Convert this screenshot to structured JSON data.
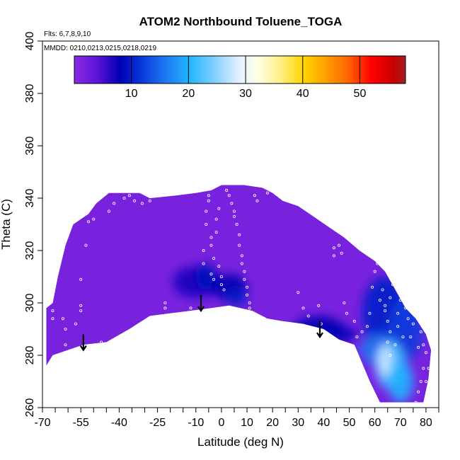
{
  "chart_data": {
    "type": "heatmap",
    "title": "ATOM2 Northbound Toluene_TOGA",
    "notes": {
      "flights": "Flts: 6,7,8,9,10",
      "dates": "MMDD: 0210,0213,0215,0218,0219"
    },
    "xlabel": "Latitude (deg N)",
    "ylabel": "Theta (C)",
    "xlim": [
      -70,
      85
    ],
    "ylim": [
      260,
      400
    ],
    "x_tick_labels": [
      "-70",
      "-55",
      "-40",
      "-25",
      "-10",
      "0",
      "10",
      "20",
      "30",
      "40",
      "50",
      "60",
      "70",
      "80"
    ],
    "x_tick_values": [
      -70,
      -55,
      -40,
      -25,
      -10,
      0,
      10,
      20,
      30,
      40,
      50,
      60,
      70,
      80
    ],
    "x_minor_ticks": [
      -65,
      -60,
      -50,
      -45,
      -35,
      -30,
      -20,
      -15,
      -5,
      5,
      15,
      25,
      35,
      45,
      55,
      65,
      75,
      85
    ],
    "y_tick_labels": [
      "260",
      "280",
      "300",
      "320",
      "340",
      "360",
      "380",
      "400"
    ],
    "y_tick_values": [
      260,
      280,
      300,
      320,
      340,
      360,
      380,
      400
    ],
    "colorbar": {
      "range": [
        0,
        58
      ],
      "tick_labels": [
        "10",
        "20",
        "30",
        "40",
        "50"
      ],
      "tick_values": [
        10,
        20,
        30,
        40,
        50
      ],
      "stops": [
        {
          "v": 0,
          "color": "#8a2be2"
        },
        {
          "v": 4,
          "color": "#5a14d8"
        },
        {
          "v": 8,
          "color": "#0000b4"
        },
        {
          "v": 12,
          "color": "#0a3cdc"
        },
        {
          "v": 16,
          "color": "#1e78f0"
        },
        {
          "v": 20,
          "color": "#1eb4ff"
        },
        {
          "v": 25,
          "color": "#8cd2ff"
        },
        {
          "v": 29,
          "color": "#e6f2ff"
        },
        {
          "v": 32,
          "color": "#ffffe6"
        },
        {
          "v": 36,
          "color": "#fff08c"
        },
        {
          "v": 40,
          "color": "#ffd700"
        },
        {
          "v": 44,
          "color": "#ffa000"
        },
        {
          "v": 48,
          "color": "#ff6400"
        },
        {
          "v": 52,
          "color": "#ff0000"
        },
        {
          "v": 56,
          "color": "#c80000"
        },
        {
          "v": 58,
          "color": "#a02020"
        }
      ]
    },
    "background_value": 1.5,
    "domain_boundary": [
      [
        -68.5,
        276
      ],
      [
        -68.5,
        298
      ],
      [
        -66,
        300
      ],
      [
        -64,
        310
      ],
      [
        -61,
        322
      ],
      [
        -58,
        330
      ],
      [
        -55,
        332
      ],
      [
        -52,
        334
      ],
      [
        -49,
        338
      ],
      [
        -44,
        342
      ],
      [
        -32,
        342
      ],
      [
        -28,
        340
      ],
      [
        -18,
        341
      ],
      [
        -10,
        342
      ],
      [
        -4,
        343
      ],
      [
        0,
        345
      ],
      [
        9,
        345
      ],
      [
        16,
        344
      ],
      [
        20,
        342
      ],
      [
        24,
        339
      ],
      [
        30,
        337
      ],
      [
        36,
        333
      ],
      [
        42,
        329
      ],
      [
        48,
        325
      ],
      [
        54,
        320
      ],
      [
        60,
        316
      ],
      [
        64,
        312
      ],
      [
        68,
        305
      ],
      [
        72,
        298
      ],
      [
        76,
        294
      ],
      [
        80,
        288
      ],
      [
        82,
        282
      ],
      [
        81,
        271
      ],
      [
        79,
        262
      ],
      [
        70,
        262
      ],
      [
        62,
        262
      ],
      [
        58,
        270
      ],
      [
        52,
        284
      ],
      [
        46,
        286
      ],
      [
        40,
        290
      ],
      [
        32,
        292
      ],
      [
        24,
        293
      ],
      [
        18,
        294
      ],
      [
        12,
        297
      ],
      [
        3,
        299
      ],
      [
        -4,
        298
      ],
      [
        -12,
        297
      ],
      [
        -20,
        296
      ],
      [
        -28,
        295
      ],
      [
        -36,
        290
      ],
      [
        -45,
        285
      ],
      [
        -54,
        284
      ],
      [
        -60,
        282
      ],
      [
        -66,
        280
      ]
    ],
    "concentration_patches": [
      {
        "lat": -10,
        "theta": 308,
        "rlat": 9,
        "rtheta": 6,
        "value": 7
      },
      {
        "lat": -6,
        "theta": 310,
        "rlat": 4,
        "rtheta": 5,
        "value": 9
      },
      {
        "lat": 3,
        "theta": 306,
        "rlat": 7,
        "rtheta": 5,
        "value": 8
      },
      {
        "lat": 6,
        "theta": 302,
        "rlat": 4,
        "rtheta": 3,
        "value": 10
      },
      {
        "lat": 38,
        "theta": 290,
        "rlat": 10,
        "rtheta": 5,
        "value": 8
      },
      {
        "lat": 45,
        "theta": 288,
        "rlat": 8,
        "rtheta": 3,
        "value": 8
      },
      {
        "lat": 64,
        "theta": 296,
        "rlat": 9,
        "rtheta": 14,
        "value": 10
      },
      {
        "lat": 72,
        "theta": 290,
        "rlat": 7,
        "rtheta": 12,
        "value": 12
      },
      {
        "lat": 62,
        "theta": 282,
        "rlat": 8,
        "rtheta": 6,
        "value": 16
      },
      {
        "lat": 66,
        "theta": 276,
        "rlat": 6,
        "rtheta": 9,
        "value": 22
      },
      {
        "lat": 64,
        "theta": 278,
        "rlat": 2.5,
        "rtheta": 6,
        "value": 28
      },
      {
        "lat": 70,
        "theta": 270,
        "rlat": 5,
        "rtheta": 8,
        "value": 20
      }
    ],
    "arrows": [
      {
        "lat": -54,
        "theta_start": 288,
        "theta_end": 282
      },
      {
        "lat": -8,
        "theta_start": 303,
        "theta_end": 297
      },
      {
        "lat": 38.5,
        "theta_start": 293,
        "theta_end": 287
      }
    ],
    "sample_points": [
      [
        -66,
        297
      ],
      [
        -66,
        294
      ],
      [
        -62,
        294
      ],
      [
        -61,
        290
      ],
      [
        -61,
        284
      ],
      [
        -57,
        292
      ],
      [
        -55,
        299
      ],
      [
        -55,
        297
      ],
      [
        -55,
        309
      ],
      [
        -53,
        322
      ],
      [
        -52,
        331
      ],
      [
        -50,
        332
      ],
      [
        -47,
        285
      ],
      [
        -44,
        335
      ],
      [
        -42,
        338
      ],
      [
        -38,
        340
      ],
      [
        -36,
        341
      ],
      [
        -34,
        339
      ],
      [
        -31,
        338
      ],
      [
        -28,
        339
      ],
      [
        -22,
        300
      ],
      [
        -22,
        298
      ],
      [
        -12,
        298
      ],
      [
        -7,
        315
      ],
      [
        -7,
        320
      ],
      [
        -6,
        330
      ],
      [
        -6,
        335
      ],
      [
        -5,
        339
      ],
      [
        -5,
        341
      ],
      [
        -4,
        325
      ],
      [
        -4,
        322
      ],
      [
        -4,
        311
      ],
      [
        -3,
        317
      ],
      [
        -3,
        309
      ],
      [
        -2,
        327
      ],
      [
        -2,
        332
      ],
      [
        -1,
        336
      ],
      [
        -1,
        314
      ],
      [
        0,
        310
      ],
      [
        0,
        307
      ],
      [
        1,
        305
      ],
      [
        1,
        298
      ],
      [
        2,
        343
      ],
      [
        3,
        341
      ],
      [
        4,
        338
      ],
      [
        5,
        335
      ],
      [
        5,
        333
      ],
      [
        6,
        330
      ],
      [
        7,
        326
      ],
      [
        7,
        322
      ],
      [
        8,
        318
      ],
      [
        8,
        315
      ],
      [
        9,
        312
      ],
      [
        9,
        309
      ],
      [
        10,
        306
      ],
      [
        10,
        303
      ],
      [
        11,
        300
      ],
      [
        11,
        298
      ],
      [
        12,
        296
      ],
      [
        13,
        341
      ],
      [
        14,
        339
      ],
      [
        18,
        342
      ],
      [
        22,
        342
      ],
      [
        24,
        340
      ],
      [
        30,
        304
      ],
      [
        32,
        298
      ],
      [
        34,
        295
      ],
      [
        38,
        299
      ],
      [
        39,
        292
      ],
      [
        44,
        321
      ],
      [
        44,
        318
      ],
      [
        46,
        322
      ],
      [
        47,
        319
      ],
      [
        48,
        300
      ],
      [
        49,
        296
      ],
      [
        52,
        293
      ],
      [
        53,
        287
      ],
      [
        55,
        289
      ],
      [
        57,
        291
      ],
      [
        58,
        296
      ],
      [
        59,
        306
      ],
      [
        60,
        312
      ],
      [
        61,
        315
      ],
      [
        62,
        301
      ],
      [
        63,
        305
      ],
      [
        64,
        299
      ],
      [
        64,
        297
      ],
      [
        65,
        293
      ],
      [
        65,
        285
      ],
      [
        66,
        302
      ],
      [
        66,
        289
      ],
      [
        66,
        280
      ],
      [
        67,
        307
      ],
      [
        68,
        284
      ],
      [
        69,
        291
      ],
      [
        69,
        296
      ],
      [
        70,
        301
      ],
      [
        71,
        303
      ],
      [
        71,
        287
      ],
      [
        72,
        298
      ],
      [
        73,
        294
      ],
      [
        74,
        287
      ],
      [
        75,
        292
      ],
      [
        76,
        295
      ],
      [
        77,
        283
      ],
      [
        78,
        289
      ],
      [
        79,
        284
      ],
      [
        80,
        281
      ],
      [
        79,
        275
      ],
      [
        78,
        270
      ],
      [
        77,
        266
      ],
      [
        76,
        262
      ],
      [
        80,
        270
      ],
      [
        81,
        275
      ]
    ]
  }
}
